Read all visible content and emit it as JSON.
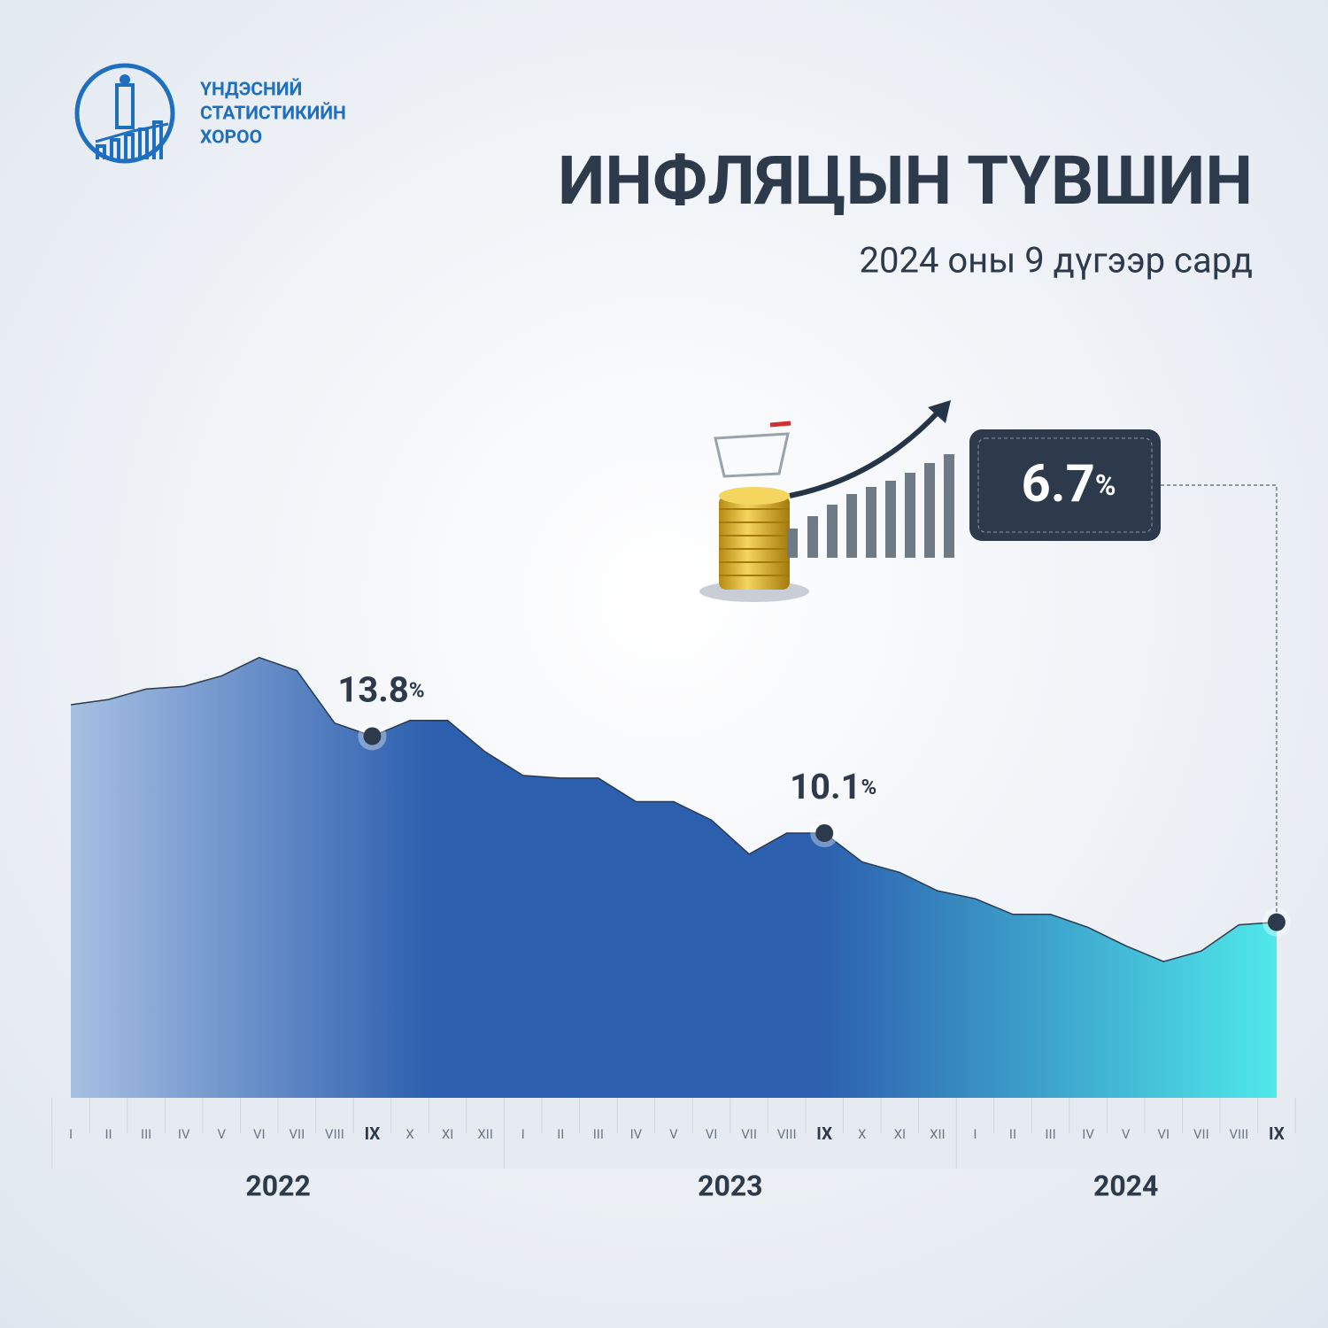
{
  "header": {
    "org_name": [
      "ҮНДЭСНИЙ",
      "СТАТИСТИКИЙН",
      "ХОРОО"
    ]
  },
  "chart_data": {
    "type": "area",
    "title": "ИНФЛЯЦЫН ТҮВШИН",
    "subtitle": "2024 оны 9 дүгээр сард",
    "categories": [
      "I",
      "II",
      "III",
      "IV",
      "V",
      "VI",
      "VII",
      "VIII",
      "IX",
      "X",
      "XI",
      "XII",
      "I",
      "II",
      "III",
      "IV",
      "V",
      "VI",
      "VII",
      "VIII",
      "IX",
      "X",
      "XI",
      "XII",
      "I",
      "II",
      "III",
      "IV",
      "V",
      "VI",
      "VII",
      "VIII",
      "IX"
    ],
    "year_labels": [
      "2022",
      "2023",
      "2024"
    ],
    "values": [
      15.0,
      15.2,
      15.6,
      15.7,
      16.1,
      16.8,
      16.3,
      14.3,
      13.8,
      14.4,
      14.4,
      13.2,
      12.3,
      12.2,
      12.2,
      11.3,
      11.3,
      10.6,
      9.3,
      10.1,
      10.1,
      9.0,
      8.6,
      7.9,
      7.6,
      7.0,
      7.0,
      6.5,
      5.8,
      5.2,
      5.6,
      6.6,
      6.7
    ],
    "value_labels": [
      null,
      null,
      null,
      null,
      null,
      null,
      null,
      null,
      "13.8%",
      null,
      null,
      null,
      null,
      null,
      null,
      null,
      null,
      null,
      null,
      null,
      "10.1%",
      null,
      null,
      null,
      null,
      null,
      null,
      null,
      null,
      null,
      null,
      null,
      "6.7%"
    ],
    "ylim": [
      0,
      20
    ],
    "colors": [
      "#a7c0e3",
      "#2c5fae",
      "#4fe8ea"
    ],
    "line_color": "#2b3a4e"
  }
}
